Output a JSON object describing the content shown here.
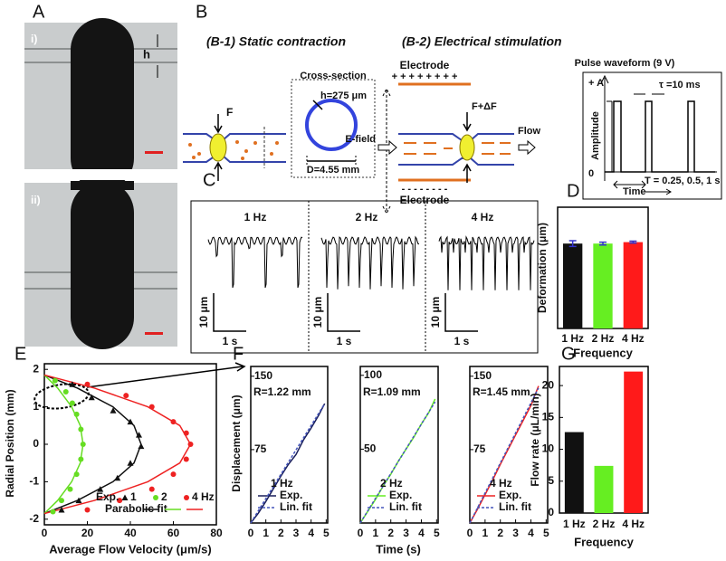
{
  "panel_labels": {
    "a": "A",
    "b": "B",
    "c": "C",
    "d": "D",
    "e": "E",
    "f": "F",
    "g": "G"
  },
  "panel_a": {
    "i": "i)",
    "ii": "ii)",
    "h": "h"
  },
  "panel_b": {
    "b1_title": "(B-1) Static contraction",
    "cross_section": "Cross-section",
    "thickness": "h=275 μm",
    "diameter": "D=4.55 mm",
    "force": "F",
    "b2_title": "(B-2) Electrical stimulation",
    "electrode_top": "Electrode",
    "plus_signs": "+ + + + + + + +",
    "e_field": "E-field",
    "force_delta": "F+ΔF",
    "flow": "Flow",
    "minus_signs": "- - - - - - - -",
    "electrode_bottom": "Electrode",
    "pulse_title": "Pulse waveform (9 V)",
    "plus_a": "+ A",
    "tau": "τ =10 ms",
    "amplitude": "Amplitude",
    "zero": "0",
    "period": "T = 0.25, 0.5, 1 s",
    "time": "Time"
  },
  "panel_c": {
    "labels": [
      "1 Hz",
      "2 Hz",
      "4 Hz"
    ],
    "scale_y": "10 μm",
    "scale_x": "1 s"
  },
  "chart_data": [
    {
      "type": "bar",
      "ylabel": "Deformation (μm)",
      "xlabel": "Frequency",
      "categories": [
        "1 Hz",
        "2 Hz",
        "4 Hz"
      ],
      "values": [
        17.5,
        17.5,
        17.8
      ],
      "errors": [
        0.6,
        0.3,
        0.2
      ],
      "colors": [
        "#111111",
        "#66ee22",
        "#ff1a1a"
      ],
      "error_color": "#3333cc",
      "ylim": [
        0,
        25
      ],
      "yticks": []
    },
    {
      "type": "scatter",
      "xlabel": "Average Flow Velocity (μm/s)",
      "ylabel": "Radial Position (mm)",
      "xlim": [
        0,
        80
      ],
      "ylim": [
        -2.15,
        2.15
      ],
      "xticks": [
        0,
        20,
        40,
        60,
        80
      ],
      "yticks": [
        -2,
        -1,
        0,
        1,
        2
      ],
      "legend_exp": "Exp.",
      "legend_fit": "Parabolic fit",
      "series": [
        {
          "name": "1",
          "color": "#111111",
          "marker": "triangle",
          "x": [
            13,
            22,
            32,
            40,
            44,
            45,
            40,
            34,
            26,
            16,
            8
          ],
          "y": [
            1.6,
            1.25,
            0.9,
            0.6,
            0.25,
            -0.05,
            -0.5,
            -0.9,
            -1.2,
            -1.5,
            -1.75
          ]
        },
        {
          "name": "2",
          "color": "#66dd22",
          "marker": "circle",
          "x": [
            5,
            10,
            13,
            15,
            17,
            18,
            17,
            15,
            12,
            8,
            4
          ],
          "y": [
            1.7,
            1.4,
            1.1,
            0.8,
            0.4,
            0,
            -0.4,
            -0.8,
            -1.2,
            -1.5,
            -1.8
          ]
        },
        {
          "name": "4 Hz",
          "color": "#ee2222",
          "marker": "circle",
          "x": [
            20,
            38,
            50,
            60,
            66,
            68,
            66,
            60,
            50,
            35,
            20
          ],
          "y": [
            1.6,
            1.3,
            1.0,
            0.6,
            0.3,
            0,
            -0.4,
            -0.8,
            -1.2,
            -1.5,
            -1.75
          ]
        }
      ],
      "fits": [
        {
          "color": "#111111",
          "x": [
            0,
            15.4,
            31.9,
            41.7,
            45,
            41.7,
            31.9,
            15.4,
            0
          ],
          "y": [
            1.85,
            1.5,
            1,
            0.5,
            0,
            -0.5,
            -1,
            -1.5,
            -1.85
          ]
        },
        {
          "color": "#66dd22",
          "x": [
            0,
            6.2,
            12.7,
            16.7,
            18,
            16.7,
            12.7,
            6.2,
            0
          ],
          "y": [
            1.85,
            1.5,
            1,
            0.5,
            0,
            -0.5,
            -1,
            -1.5,
            -1.85
          ]
        },
        {
          "color": "#ee2222",
          "x": [
            0,
            23.3,
            48.1,
            63.0,
            68,
            63.0,
            48.1,
            23.3,
            0
          ],
          "y": [
            1.85,
            1.5,
            1,
            0.5,
            0,
            -0.5,
            -1,
            -1.5,
            -1.85
          ]
        }
      ]
    },
    {
      "type": "line",
      "ylabel": "Displacement (μm)",
      "annotation": "R=1.22 mm",
      "legend_title": "1 Hz",
      "xlim": [
        0,
        5.1
      ],
      "ylim": [
        0,
        160
      ],
      "xticks": [
        0,
        1,
        2,
        3,
        4,
        5
      ],
      "yticks": [
        75,
        150
      ],
      "series": [
        {
          "name": "Exp.",
          "color": "#1a1f5a",
          "x": [
            0,
            0.5,
            1,
            1.5,
            2,
            2.5,
            3,
            3.5,
            4,
            4.5,
            4.9
          ],
          "values": [
            0,
            10,
            22,
            35,
            48,
            60,
            70,
            85,
            97,
            110,
            122
          ]
        },
        {
          "name": "Lin. fit",
          "color": "#4455bb",
          "dash": true,
          "x": [
            0,
            4.9
          ],
          "values": [
            0,
            122
          ]
        }
      ]
    },
    {
      "type": "line",
      "xlabel": "Time (s)",
      "annotation": "R=1.09 mm",
      "legend_title": "2 Hz",
      "xlim": [
        0,
        5.1
      ],
      "ylim": [
        0,
        106
      ],
      "xticks": [
        0,
        1,
        2,
        3,
        4,
        5
      ],
      "yticks": [
        50,
        100
      ],
      "series": [
        {
          "name": "Exp.",
          "color": "#66ee22",
          "x": [
            0,
            0.5,
            1,
            1.5,
            2,
            2.5,
            3,
            3.5,
            4,
            4.5,
            4.9
          ],
          "values": [
            0,
            8,
            16,
            25,
            33,
            42,
            50,
            58,
            67,
            75,
            84
          ]
        },
        {
          "name": "Lin. fit",
          "color": "#4455bb",
          "dash": true,
          "x": [
            0,
            4.9
          ],
          "values": [
            0,
            82
          ]
        }
      ]
    },
    {
      "type": "line",
      "annotation": "R=1.45 mm",
      "legend_title": "4 Hz",
      "xlim": [
        0,
        5.1
      ],
      "ylim": [
        0,
        160
      ],
      "xticks": [
        0,
        1,
        2,
        3,
        4,
        5
      ],
      "yticks": [
        75,
        150
      ],
      "series": [
        {
          "name": "Exp.",
          "color": "#ee2222",
          "x": [
            0,
            0.5,
            1,
            1.5,
            2,
            2.5,
            3,
            3.5,
            4,
            4.5
          ],
          "values": [
            0,
            14,
            29,
            44,
            60,
            75,
            90,
            105,
            120,
            140
          ]
        },
        {
          "name": "Lin. fit",
          "color": "#4455bb",
          "dash": true,
          "x": [
            0,
            4.5
          ],
          "values": [
            0,
            138
          ]
        }
      ]
    },
    {
      "type": "bar",
      "ylabel": "Flow rate (μL/min)",
      "xlabel": "Frequency",
      "categories": [
        "1 Hz",
        "2 Hz",
        "4 Hz"
      ],
      "values": [
        12.7,
        7.4,
        22.2
      ],
      "colors": [
        "#111111",
        "#66ee22",
        "#ff1a1a"
      ],
      "ylim": [
        0,
        23
      ],
      "yticks": [
        0,
        5,
        10,
        15,
        20
      ]
    }
  ]
}
